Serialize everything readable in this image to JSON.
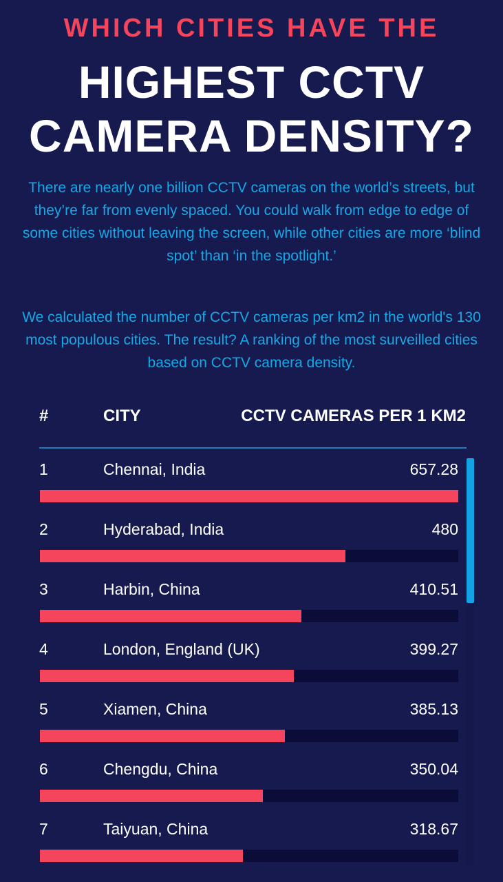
{
  "header": {
    "kicker": "WHICH CITIES HAVE THE",
    "title_line1": "HIGHEST CCTV",
    "title_line2": "CAMERA DENSITY?"
  },
  "intro": {
    "paragraph1": "There are nearly one billion CCTV cameras on the world’s streets, but they’re far from evenly spaced. You could walk from edge to edge of some cities without leaving the screen, while other cities are more ‘blind spot’ than ‘in the spotlight.’",
    "paragraph2": "We calculated the number of CCTV cameras per km2 in the world's 130 most populous cities. The result? A ranking of the most surveilled cities based on CCTV camera density."
  },
  "table": {
    "col_rank": "#",
    "col_city": "CITY",
    "col_value": "CCTV CAMERAS PER 1 KM2"
  },
  "colors": {
    "background": "#161a4f",
    "bar": "#f5455c",
    "track": "#0b0d38",
    "accent_text": "#17a8e6",
    "scrollbar": "#12a3e6"
  },
  "chart_data": {
    "type": "bar",
    "orientation": "horizontal",
    "title": "",
    "xlabel": "CCTV CAMERAS PER 1 KM2",
    "ylabel": "CITY",
    "xlim": [
      0,
      657.28
    ],
    "ranks": [
      "1",
      "2",
      "3",
      "4",
      "5",
      "6",
      "7"
    ],
    "categories": [
      "Chennai, India",
      "Hyderabad, India",
      "Harbin, China",
      "London, England (UK)",
      "Xiamen, China",
      "Chengdu, China",
      "Taiyuan, China"
    ],
    "values": [
      657.28,
      480,
      410.51,
      399.27,
      385.13,
      350.04,
      318.67
    ],
    "value_labels": [
      "657.28",
      "480",
      "410.51",
      "399.27",
      "385.13",
      "350.04",
      "318.67"
    ]
  }
}
